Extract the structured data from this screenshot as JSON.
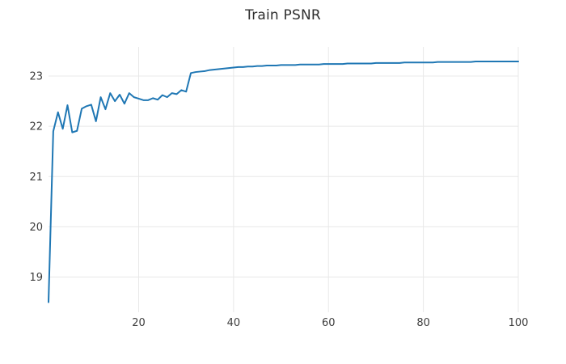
{
  "chart_data": {
    "type": "line",
    "title": "Train PSNR",
    "xlabel": "",
    "ylabel": "",
    "xlim": [
      1,
      100
    ],
    "ylim": [
      18.3,
      23.58
    ],
    "xticks": [
      20,
      40,
      60,
      80,
      100
    ],
    "yticks": [
      19,
      20,
      21,
      22,
      23
    ],
    "grid": true,
    "legend": false,
    "line_color": "#1f77b4",
    "grid_color": "#e8e8e8",
    "tick_label_color": "#3d3d3d",
    "title_color": "#2f2f2f",
    "background_color": "#ffffff",
    "x": [
      1,
      2,
      3,
      4,
      5,
      6,
      7,
      8,
      9,
      10,
      11,
      12,
      13,
      14,
      15,
      16,
      17,
      18,
      19,
      20,
      21,
      22,
      23,
      24,
      25,
      26,
      27,
      28,
      29,
      30,
      31,
      32,
      33,
      34,
      35,
      36,
      37,
      38,
      39,
      40,
      41,
      42,
      43,
      44,
      45,
      46,
      47,
      48,
      49,
      50,
      51,
      52,
      53,
      54,
      55,
      56,
      57,
      58,
      59,
      60,
      61,
      62,
      63,
      64,
      65,
      66,
      67,
      68,
      69,
      70,
      71,
      72,
      73,
      74,
      75,
      76,
      77,
      78,
      79,
      80,
      81,
      82,
      83,
      84,
      85,
      86,
      87,
      88,
      89,
      90,
      91,
      92,
      93,
      94,
      95,
      96,
      97,
      98,
      99,
      100
    ],
    "y": [
      18.5,
      21.9,
      22.28,
      21.95,
      22.42,
      21.88,
      21.91,
      22.35,
      22.4,
      22.43,
      22.1,
      22.58,
      22.34,
      22.66,
      22.5,
      22.63,
      22.45,
      22.66,
      22.58,
      22.55,
      22.52,
      22.52,
      22.56,
      22.53,
      22.62,
      22.58,
      22.66,
      22.64,
      22.72,
      22.69,
      23.06,
      23.08,
      23.09,
      23.1,
      23.12,
      23.13,
      23.14,
      23.15,
      23.16,
      23.17,
      23.18,
      23.18,
      23.19,
      23.19,
      23.2,
      23.2,
      23.21,
      23.21,
      23.21,
      23.22,
      23.22,
      23.22,
      23.22,
      23.23,
      23.23,
      23.23,
      23.23,
      23.23,
      23.24,
      23.24,
      23.24,
      23.24,
      23.24,
      23.25,
      23.25,
      23.25,
      23.25,
      23.25,
      23.25,
      23.26,
      23.26,
      23.26,
      23.26,
      23.26,
      23.26,
      23.27,
      23.27,
      23.27,
      23.27,
      23.27,
      23.27,
      23.27,
      23.28,
      23.28,
      23.28,
      23.28,
      23.28,
      23.28,
      23.28,
      23.28,
      23.29,
      23.29,
      23.29,
      23.29,
      23.29,
      23.29,
      23.29,
      23.29,
      23.29,
      23.29
    ]
  }
}
